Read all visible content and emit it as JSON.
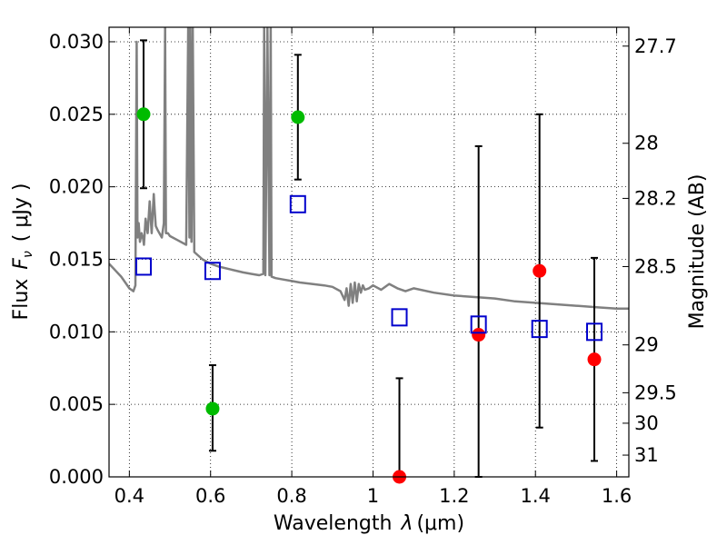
{
  "chart_data": {
    "type": "scatter",
    "xlabel": "Wavelength  λ (μm)",
    "ylabel": "Flux  Fν  ( μJy )",
    "ylabel_parts": {
      "prefix": "Flux",
      "symbol": "F",
      "subscript": "ν",
      "unit": "( μJy )"
    },
    "xlabel_parts": {
      "prefix": "Wavelength",
      "symbol": "λ",
      "unit": "(μm)"
    },
    "y2label": "Magnitude (AB)",
    "xlim": [
      0.35,
      1.63
    ],
    "ylim": [
      0.0,
      0.031
    ],
    "grid": true,
    "x_ticks": [
      0.4,
      0.6,
      0.8,
      1.0,
      1.2,
      1.4,
      1.6
    ],
    "x_tick_labels": [
      "0.4",
      "0.6",
      "0.8",
      "1",
      "1.2",
      "1.4",
      "1.6"
    ],
    "y_ticks": [
      0.0,
      0.005,
      0.01,
      0.015,
      0.02,
      0.025,
      0.03
    ],
    "y_tick_labels": [
      "0.000",
      "0.005",
      "0.010",
      "0.015",
      "0.020",
      "0.025",
      "0.030"
    ],
    "magnitude_ticks": [
      {
        "label": "27.7",
        "flux": 0.0297
      },
      {
        "label": "28",
        "flux": 0.023
      },
      {
        "label": "28.2",
        "flux": 0.0192
      },
      {
        "label": "28.5",
        "flux": 0.0145
      },
      {
        "label": "29",
        "flux": 0.0091
      },
      {
        "label": "29.5",
        "flux": 0.0058
      },
      {
        "label": "30",
        "flux": 0.0037
      },
      {
        "label": "31",
        "flux": 0.0015
      }
    ],
    "colors": {
      "model": "#808080",
      "green": "#00bb00",
      "red": "#ff0000",
      "model_photometry": "#0000cc",
      "errorbar": "#000000",
      "grid": "#000000"
    },
    "series": [
      {
        "name": "model-spectrum",
        "kind": "line",
        "x": [
          0.35,
          0.38,
          0.4,
          0.41,
          0.415,
          0.418,
          0.42,
          0.423,
          0.426,
          0.43,
          0.434,
          0.436,
          0.44,
          0.445,
          0.45,
          0.455,
          0.46,
          0.462,
          0.465,
          0.47,
          0.48,
          0.485,
          0.488,
          0.49,
          0.495,
          0.5,
          0.52,
          0.54,
          0.545,
          0.548,
          0.55,
          0.553,
          0.556,
          0.56,
          0.58,
          0.6,
          0.62,
          0.65,
          0.68,
          0.7,
          0.72,
          0.73,
          0.732,
          0.735,
          0.74,
          0.745,
          0.748,
          0.75,
          0.76,
          0.78,
          0.8,
          0.82,
          0.85,
          0.88,
          0.9,
          0.92,
          0.93,
          0.935,
          0.94,
          0.945,
          0.95,
          0.955,
          0.96,
          0.965,
          0.97,
          0.975,
          0.98,
          0.99,
          1.0,
          1.02,
          1.04,
          1.06,
          1.08,
          1.1,
          1.15,
          1.2,
          1.25,
          1.3,
          1.35,
          1.4,
          1.45,
          1.5,
          1.55,
          1.6,
          1.63
        ],
        "y": [
          0.0147,
          0.0138,
          0.013,
          0.0128,
          0.0132,
          0.03,
          0.0165,
          0.0175,
          0.0162,
          0.0168,
          0.0164,
          0.016,
          0.0178,
          0.0168,
          0.019,
          0.0168,
          0.0195,
          0.0185,
          0.0173,
          0.017,
          0.0165,
          0.0175,
          0.031,
          0.0168,
          0.0168,
          0.0166,
          0.0163,
          0.016,
          0.031,
          0.0165,
          0.031,
          0.0162,
          0.031,
          0.0155,
          0.015,
          0.0147,
          0.0145,
          0.0143,
          0.0141,
          0.014,
          0.0139,
          0.014,
          0.031,
          0.0139,
          0.031,
          0.0139,
          0.031,
          0.0138,
          0.0137,
          0.0136,
          0.0135,
          0.0134,
          0.0133,
          0.0132,
          0.0131,
          0.0128,
          0.0122,
          0.013,
          0.0118,
          0.0133,
          0.012,
          0.0134,
          0.0121,
          0.0133,
          0.0127,
          0.0132,
          0.0129,
          0.013,
          0.0132,
          0.0129,
          0.0133,
          0.013,
          0.0128,
          0.013,
          0.0127,
          0.0125,
          0.0124,
          0.0123,
          0.0121,
          0.012,
          0.0119,
          0.0118,
          0.0117,
          0.0116,
          0.0116
        ]
      },
      {
        "name": "observed-green",
        "kind": "points",
        "marker": "circle",
        "points": [
          {
            "x": 0.435,
            "y": 0.025,
            "err_lo": 0.0051,
            "err_hi": 0.0051
          },
          {
            "x": 0.605,
            "y": 0.0047,
            "err_lo": 0.0029,
            "err_hi": 0.003
          },
          {
            "x": 0.815,
            "y": 0.0248,
            "err_lo": 0.0043,
            "err_hi": 0.0043
          }
        ]
      },
      {
        "name": "observed-red",
        "kind": "points",
        "marker": "circle",
        "points": [
          {
            "x": 1.065,
            "y": 0.0,
            "err_lo": 0.0,
            "err_hi": 0.0068
          },
          {
            "x": 1.26,
            "y": 0.0098,
            "err_lo": 0.0098,
            "err_hi": 0.013
          },
          {
            "x": 1.41,
            "y": 0.0142,
            "err_lo": 0.0108,
            "err_hi": 0.0108
          },
          {
            "x": 1.545,
            "y": 0.0081,
            "err_lo": 0.007,
            "err_hi": 0.007
          }
        ]
      },
      {
        "name": "model-photometry",
        "kind": "points",
        "marker": "open-square",
        "points": [
          {
            "x": 0.435,
            "y": 0.0145
          },
          {
            "x": 0.605,
            "y": 0.0142
          },
          {
            "x": 0.815,
            "y": 0.0188
          },
          {
            "x": 1.065,
            "y": 0.011
          },
          {
            "x": 1.26,
            "y": 0.0105
          },
          {
            "x": 1.41,
            "y": 0.0102
          },
          {
            "x": 1.545,
            "y": 0.01
          }
        ]
      }
    ]
  }
}
